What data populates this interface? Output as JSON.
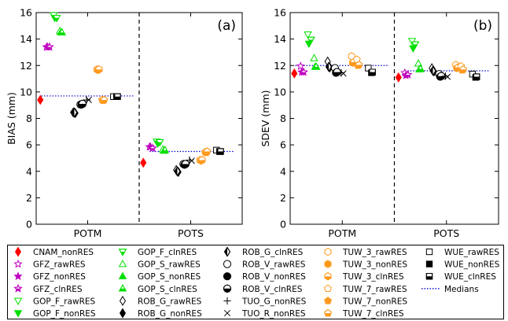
{
  "chart_data": [
    {
      "type": "scatter",
      "panel_tag": "(a)",
      "ylabel": "BIAS (mm)",
      "ylim": [
        0,
        16
      ],
      "yticks": [
        "0",
        "2",
        "4",
        "6",
        "8",
        "10",
        "12",
        "14",
        "16"
      ],
      "categories": [
        "POTM",
        "POTS"
      ],
      "medians": [
        9.7,
        5.5
      ],
      "points": [
        {
          "series": "CNAM_nonRES",
          "values": [
            9.4,
            4.65
          ]
        },
        {
          "series": "GFZ_rawRES",
          "values": [
            13.4,
            5.85
          ]
        },
        {
          "series": "GFZ_nonRES",
          "values": [
            13.4,
            5.85
          ]
        },
        {
          "series": "GFZ_clnRES",
          "values": [
            13.4,
            5.75
          ]
        },
        {
          "series": "GOP_F_rawRES",
          "values": [
            15.8,
            6.25
          ]
        },
        {
          "series": "GOP_F_nonRES",
          "values": [
            15.6,
            6.1
          ]
        },
        {
          "series": "GOP_F_clnRES",
          "values": [
            15.6,
            6.2
          ]
        },
        {
          "series": "GOP_S_rawRES",
          "values": [
            14.6,
            5.65
          ]
        },
        {
          "series": "GOP_S_nonRES",
          "values": [
            14.5,
            5.55
          ]
        },
        {
          "series": "GOP_S_clnRES",
          "values": [
            14.5,
            5.6
          ]
        },
        {
          "series": "ROB_G_rawRES",
          "values": [
            8.45,
            4.1
          ]
        },
        {
          "series": "ROB_G_nonRES",
          "values": [
            8.4,
            3.95
          ]
        },
        {
          "series": "ROB_G_clnRES",
          "values": [
            8.45,
            4.0
          ]
        },
        {
          "series": "ROB_V_rawRES",
          "values": [
            9.05,
            4.55
          ]
        },
        {
          "series": "ROB_V_nonRES",
          "values": [
            9.05,
            4.5
          ]
        },
        {
          "series": "ROB_V_clnRES",
          "values": [
            9.1,
            4.55
          ]
        },
        {
          "series": "TUO_G_nonRES",
          "values": [
            9.4,
            4.85
          ]
        },
        {
          "series": "TUO_R_nonRES",
          "values": [
            9.4,
            4.8
          ]
        },
        {
          "series": "TUW_3_rawRES",
          "values": [
            11.7,
            4.85
          ]
        },
        {
          "series": "TUW_3_nonRES",
          "values": [
            11.65,
            4.8
          ]
        },
        {
          "series": "TUW_3_clnRES",
          "values": [
            11.7,
            4.85
          ]
        },
        {
          "series": "TUW_7_rawRES",
          "values": [
            9.4,
            5.45
          ]
        },
        {
          "series": "TUW_7_nonRES",
          "values": [
            9.35,
            5.4
          ]
        },
        {
          "series": "TUW_7_clnRES",
          "values": [
            9.4,
            5.5
          ]
        },
        {
          "series": "WUE_rawRES",
          "values": [
            9.65,
            5.6
          ]
        },
        {
          "series": "WUE_nonRES",
          "values": [
            9.65,
            5.5
          ]
        },
        {
          "series": "WUE_clnRES",
          "values": [
            9.65,
            5.5
          ]
        }
      ]
    },
    {
      "type": "scatter",
      "panel_tag": "(b)",
      "ylabel": "SDEV (mm)",
      "ylim": [
        0,
        16
      ],
      "yticks": [
        "0",
        "2",
        "4",
        "6",
        "8",
        "10",
        "12",
        "14",
        "16"
      ],
      "categories": [
        "POTM",
        "POTS"
      ],
      "medians": [
        12.0,
        11.6
      ],
      "points": [
        {
          "series": "CNAM_nonRES",
          "values": [
            11.4,
            11.1
          ]
        },
        {
          "series": "GFZ_rawRES",
          "values": [
            11.95,
            11.45
          ]
        },
        {
          "series": "GFZ_nonRES",
          "values": [
            11.5,
            11.25
          ]
        },
        {
          "series": "GFZ_clnRES",
          "values": [
            11.5,
            11.3
          ]
        },
        {
          "series": "GOP_F_rawRES",
          "values": [
            14.35,
            13.85
          ]
        },
        {
          "series": "GOP_F_nonRES",
          "values": [
            13.65,
            13.3
          ]
        },
        {
          "series": "GOP_F_clnRES",
          "values": [
            13.95,
            13.6
          ]
        },
        {
          "series": "GOP_S_rawRES",
          "values": [
            12.55,
            12.15
          ]
        },
        {
          "series": "GOP_S_nonRES",
          "values": [
            11.9,
            11.7
          ]
        },
        {
          "series": "GOP_S_clnRES",
          "values": [
            11.9,
            11.75
          ]
        },
        {
          "series": "ROB_G_rawRES",
          "values": [
            12.3,
            11.8
          ]
        },
        {
          "series": "ROB_G_nonRES",
          "values": [
            11.85,
            11.55
          ]
        },
        {
          "series": "ROB_G_clnRES",
          "values": [
            11.9,
            11.6
          ]
        },
        {
          "series": "ROB_V_rawRES",
          "values": [
            11.8,
            11.35
          ]
        },
        {
          "series": "ROB_V_nonRES",
          "values": [
            11.45,
            11.15
          ]
        },
        {
          "series": "ROB_V_clnRES",
          "values": [
            11.5,
            11.2
          ]
        },
        {
          "series": "TUO_G_nonRES",
          "values": [
            11.45,
            11.2
          ]
        },
        {
          "series": "TUO_R_nonRES",
          "values": [
            11.4,
            11.15
          ]
        },
        {
          "series": "TUW_3_rawRES",
          "values": [
            12.7,
            12.05
          ]
        },
        {
          "series": "TUW_3_nonRES",
          "values": [
            12.2,
            11.8
          ]
        },
        {
          "series": "TUW_3_clnRES",
          "values": [
            12.25,
            11.85
          ]
        },
        {
          "series": "TUW_7_rawRES",
          "values": [
            12.45,
            11.95
          ]
        },
        {
          "series": "TUW_7_nonRES",
          "values": [
            12.0,
            11.65
          ]
        },
        {
          "series": "TUW_7_clnRES",
          "values": [
            12.05,
            11.7
          ]
        },
        {
          "series": "WUE_rawRES",
          "values": [
            11.8,
            11.35
          ]
        },
        {
          "series": "WUE_nonRES",
          "values": [
            11.45,
            11.1
          ]
        },
        {
          "series": "WUE_clnRES",
          "values": [
            11.5,
            11.15
          ]
        }
      ]
    }
  ],
  "legend": [
    {
      "label": "CNAM_nonRES",
      "marker": "diamond",
      "fill": "full",
      "color": "#ff0000"
    },
    {
      "label": "GFZ_rawRES",
      "marker": "star",
      "fill": "none",
      "color": "#bf00bf"
    },
    {
      "label": "GFZ_nonRES",
      "marker": "star",
      "fill": "full",
      "color": "#bf00bf"
    },
    {
      "label": "GFZ_clnRES",
      "marker": "star",
      "fill": "bottom",
      "color": "#bf00bf"
    },
    {
      "label": "GOP_F_rawRES",
      "marker": "triangle-down",
      "fill": "none",
      "color": "#00e000"
    },
    {
      "label": "GOP_F_nonRES",
      "marker": "triangle-down",
      "fill": "full",
      "color": "#00e000"
    },
    {
      "label": "GOP_F_clnRES",
      "marker": "triangle-down",
      "fill": "bottom",
      "color": "#00e000"
    },
    {
      "label": "GOP_S_rawRES",
      "marker": "triangle-up",
      "fill": "none",
      "color": "#00e000"
    },
    {
      "label": "GOP_S_nonRES",
      "marker": "triangle-up",
      "fill": "full",
      "color": "#00e000"
    },
    {
      "label": "GOP_S_clnRES",
      "marker": "triangle-up",
      "fill": "bottom",
      "color": "#00e000"
    },
    {
      "label": "ROB_G_rawRES",
      "marker": "diamond",
      "fill": "none",
      "color": "#000000"
    },
    {
      "label": "ROB_G_nonRES",
      "marker": "diamond",
      "fill": "full",
      "color": "#000000"
    },
    {
      "label": "ROB_G_clnRES",
      "marker": "diamond",
      "fill": "left",
      "color": "#000000"
    },
    {
      "label": "ROB_V_rawRES",
      "marker": "circle",
      "fill": "none",
      "color": "#000000"
    },
    {
      "label": "ROB_V_nonRES",
      "marker": "circle",
      "fill": "full",
      "color": "#000000"
    },
    {
      "label": "ROB_V_clnRES",
      "marker": "circle",
      "fill": "bottom",
      "color": "#000000"
    },
    {
      "label": "TUO_G_nonRES",
      "marker": "plus",
      "fill": "none",
      "color": "#000000"
    },
    {
      "label": "TUO_R_nonRES",
      "marker": "x",
      "fill": "none",
      "color": "#000000"
    },
    {
      "label": "TUW_3_rawRES",
      "marker": "hexagon",
      "fill": "none",
      "color": "#ff9a1f"
    },
    {
      "label": "TUW_3_nonRES",
      "marker": "hexagon",
      "fill": "full",
      "color": "#ff9a1f"
    },
    {
      "label": "TUW_3_clnRES",
      "marker": "hexagon",
      "fill": "bottom",
      "color": "#ff9a1f"
    },
    {
      "label": "TUW_7_rawRES",
      "marker": "pentagon",
      "fill": "none",
      "color": "#ff9a1f"
    },
    {
      "label": "TUW_7_nonRES",
      "marker": "pentagon",
      "fill": "full",
      "color": "#ff9a1f"
    },
    {
      "label": "TUW_7_clnRES",
      "marker": "pentagon",
      "fill": "bottom",
      "color": "#ff9a1f"
    },
    {
      "label": "WUE_rawRES",
      "marker": "square",
      "fill": "none",
      "color": "#000000"
    },
    {
      "label": "WUE_nonRES",
      "marker": "square",
      "fill": "full",
      "color": "#000000"
    },
    {
      "label": "WUE_clnRES",
      "marker": "square",
      "fill": "bottom",
      "color": "#000000"
    },
    {
      "label": "Medians",
      "marker": "dotted-line",
      "fill": "none",
      "color": "#0000cc"
    }
  ],
  "colors": {
    "median_line": "#0000cc",
    "separator": "#000000"
  }
}
